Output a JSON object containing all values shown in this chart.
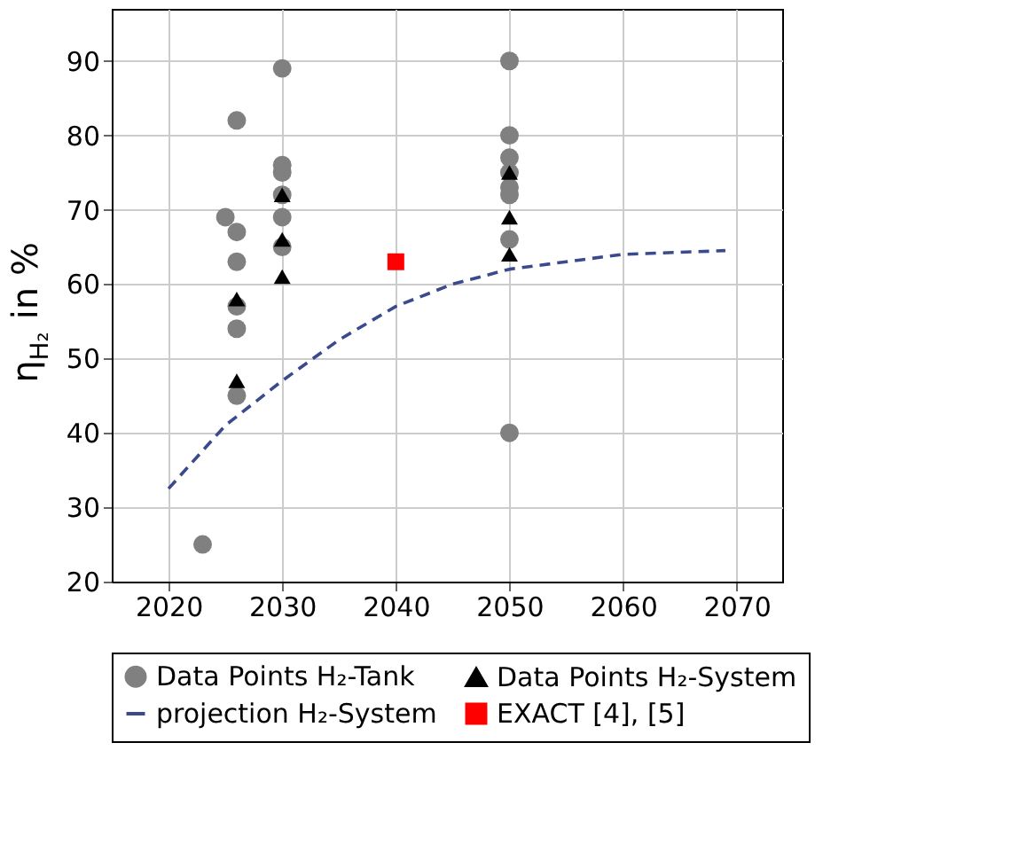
{
  "chart_data": {
    "type": "scatter",
    "ylabel": "η$_{H₂}$ in %",
    "xlim": [
      2015,
      2074
    ],
    "xticks": [
      2020,
      2030,
      2040,
      2050,
      2060,
      2070
    ],
    "ylim": [
      20,
      97
    ],
    "yticks": [
      20,
      30,
      40,
      50,
      60,
      70,
      80,
      90
    ],
    "grid": true,
    "legend": "bottom",
    "series": [
      {
        "name": "Data Points H₂-Tank",
        "marker": "circle",
        "color": "#808080",
        "x": [
          2023,
          2025,
          2026,
          2026,
          2026,
          2026,
          2026,
          2026,
          2030,
          2030,
          2030,
          2030,
          2030,
          2030,
          2050,
          2050,
          2050,
          2050,
          2050,
          2050,
          2050,
          2050
        ],
        "values": [
          25,
          69,
          82,
          67,
          63,
          57,
          54,
          45,
          89,
          76,
          75,
          72,
          69,
          65,
          90,
          80,
          77,
          75,
          73,
          72,
          66,
          40
        ]
      },
      {
        "name": "Data Points H₂-System",
        "marker": "triangle",
        "color": "#000000",
        "x": [
          2026,
          2026,
          2030,
          2030,
          2030,
          2050,
          2050,
          2050
        ],
        "values": [
          58,
          47,
          72,
          66,
          61,
          75,
          69,
          64
        ]
      },
      {
        "name": "projection H₂-System",
        "type": "line",
        "line_style": "dashed",
        "marker": "none",
        "color": "#3a4a8c",
        "x": [
          2020,
          2025,
          2030,
          2035,
          2040,
          2045,
          2050,
          2055,
          2060,
          2069
        ],
        "values": [
          32.5,
          41,
          47,
          52.5,
          57,
          60,
          62,
          63,
          64,
          64.5
        ]
      },
      {
        "name": "EXACT [4], [5]",
        "marker": "square",
        "color": "#ff0000",
        "x": [
          2040
        ],
        "values": [
          63
        ]
      }
    ]
  }
}
